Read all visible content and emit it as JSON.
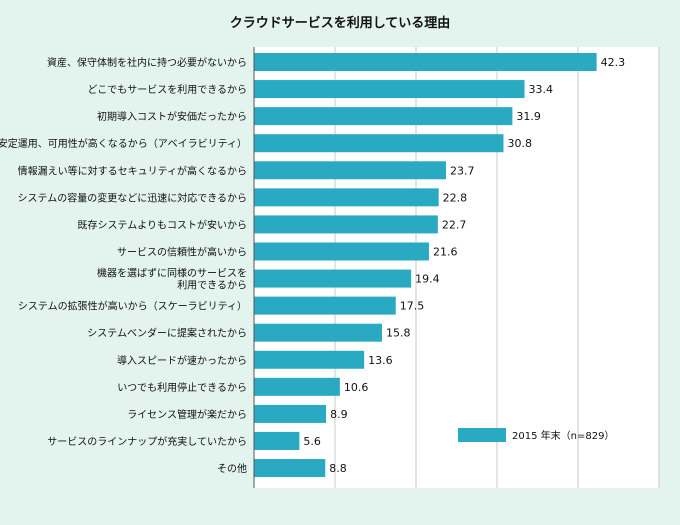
{
  "chart_data": {
    "type": "bar",
    "orientation": "horizontal",
    "title": "クラウドサービスを利用している理由",
    "xlim": [
      0,
      50
    ],
    "grid": true,
    "legend_position": "bottom-right",
    "colors": {
      "bar": "#2aa9c2",
      "background": "#e3f3ee",
      "panel": "#ffffff",
      "axis": "#555555"
    },
    "series": [
      {
        "name": "2015 年末（n=829）",
        "values": [
          42.3,
          33.4,
          31.9,
          30.8,
          23.7,
          22.8,
          22.7,
          21.6,
          19.4,
          17.5,
          15.8,
          13.6,
          10.6,
          8.9,
          5.6,
          8.8
        ]
      }
    ],
    "categories": [
      [
        "資産、保守体制を社内に持つ必要がないから"
      ],
      [
        "どこでもサービスを利用できるから"
      ],
      [
        "初期導入コストが安価だったから"
      ],
      [
        "安定運用、可用性が高くなるから（アベイラビリティ）"
      ],
      [
        "情報漏えい等に対するセキュリティが高くなるから"
      ],
      [
        "システムの容量の変更などに迅速に対応できるから"
      ],
      [
        "既存システムよりもコストが安いから"
      ],
      [
        "サービスの信頼性が高いから"
      ],
      [
        "機器を選ばずに同様のサービスを",
        "利用できるから"
      ],
      [
        "システムの拡張性が高いから（スケーラビリティ）"
      ],
      [
        "システムベンダーに提案されたから"
      ],
      [
        "導入スピードが速かったから"
      ],
      [
        "いつでも利用停止できるから"
      ],
      [
        "ライセンス管理が楽だから"
      ],
      [
        "サービスのラインナップが充実していたから"
      ],
      [
        "その他"
      ]
    ]
  }
}
